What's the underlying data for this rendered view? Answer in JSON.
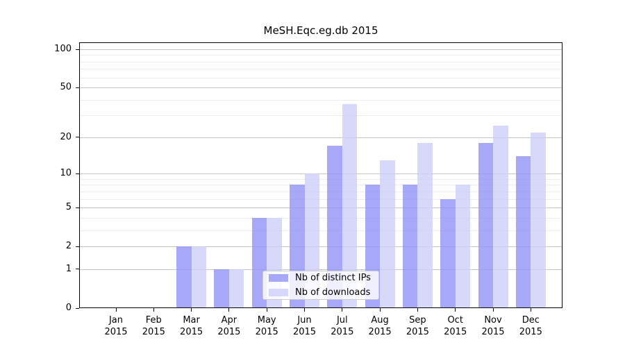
{
  "chart_data": {
    "type": "bar",
    "title": "MeSH.Eqc.eg.db 2015",
    "scale": "log1p",
    "grid": true,
    "legend_position": "lower-center-inside",
    "categories": [
      "Jan 2015",
      "Feb 2015",
      "Mar 2015",
      "Apr 2015",
      "May 2015",
      "Jun 2015",
      "Jul 2015",
      "Aug 2015",
      "Sep 2015",
      "Oct 2015",
      "Nov 2015",
      "Dec 2015"
    ],
    "x_tick_labels": [
      [
        "Jan",
        "2015"
      ],
      [
        "Feb",
        "2015"
      ],
      [
        "Mar",
        "2015"
      ],
      [
        "Apr",
        "2015"
      ],
      [
        "May",
        "2015"
      ],
      [
        "Jun",
        "2015"
      ],
      [
        "Jul",
        "2015"
      ],
      [
        "Aug",
        "2015"
      ],
      [
        "Sep",
        "2015"
      ],
      [
        "Oct",
        "2015"
      ],
      [
        "Nov",
        "2015"
      ],
      [
        "Dec",
        "2015"
      ]
    ],
    "series": [
      {
        "name": "Nb of distinct IPs",
        "color": "#9292f8",
        "values": [
          0,
          0,
          2,
          1,
          4,
          8,
          17,
          8,
          8,
          6,
          18,
          14
        ]
      },
      {
        "name": "Nb of downloads",
        "color": "#cecefa",
        "values": [
          0,
          0,
          2,
          1,
          4,
          10,
          37,
          13,
          18,
          8,
          25,
          22
        ]
      }
    ],
    "ylabel": "",
    "xlabel": "",
    "ylim": [
      0,
      113
    ],
    "y_major_ticks": [
      0,
      1,
      2,
      5,
      10,
      20,
      50,
      100
    ],
    "y_minor_gridlines": [
      3,
      4,
      6,
      7,
      8,
      9,
      30,
      40,
      60,
      70,
      80,
      90
    ]
  },
  "colors": {
    "bar_distinct_ips": "#a8a8fa",
    "bar_downloads": "#d8d8fa",
    "major_grid": "#c3c3c3",
    "minor_grid": "#ececec",
    "axis": "#000000",
    "legend_border": "#cccccc",
    "background": "#ffffff"
  }
}
